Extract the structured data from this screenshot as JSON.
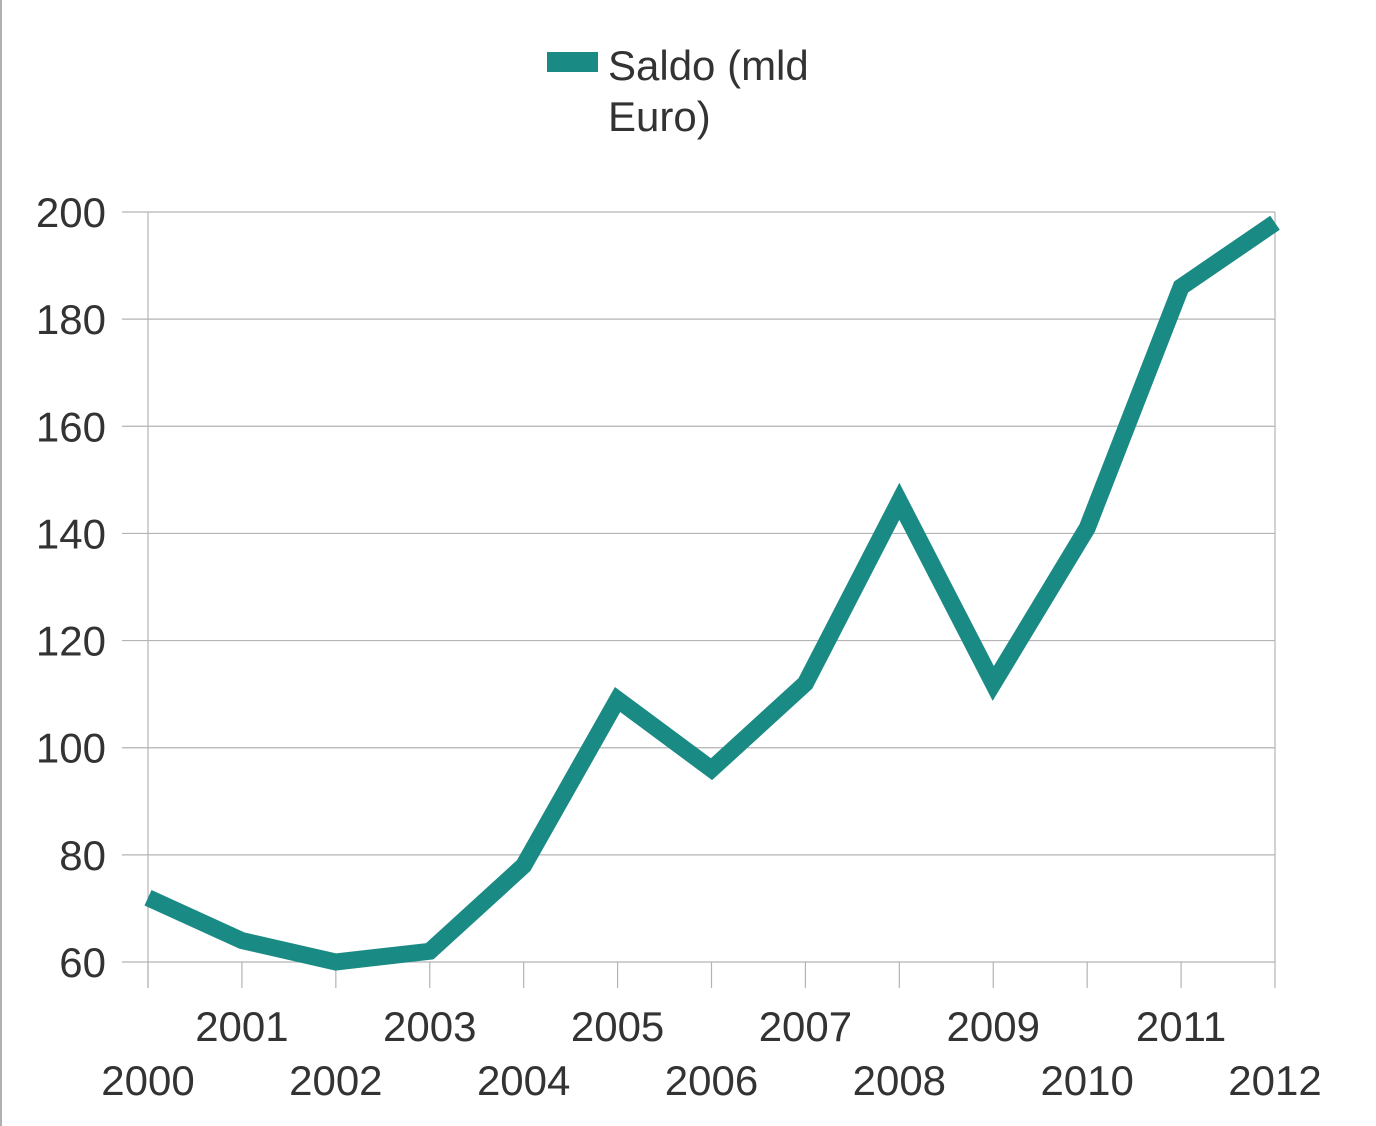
{
  "chart_data": {
    "type": "line",
    "title": "",
    "xlabel": "",
    "ylabel": "",
    "categories": [
      "2000",
      "2001",
      "2002",
      "2003",
      "2004",
      "2005",
      "2006",
      "2007",
      "2008",
      "2009",
      "2010",
      "2011",
      "2012"
    ],
    "series": [
      {
        "name": "Saldo (mld Euro)",
        "name_lines": [
          "Saldo (mld",
          "Euro)"
        ],
        "color": "#1a8a84",
        "values": [
          72,
          64,
          60,
          62,
          78,
          109,
          96,
          112,
          146,
          112,
          141,
          186,
          198
        ]
      }
    ],
    "ylim": [
      60,
      200
    ],
    "yticks": [
      60,
      80,
      100,
      120,
      140,
      160,
      180,
      200
    ],
    "grid": true,
    "legend_position": "top-center"
  }
}
